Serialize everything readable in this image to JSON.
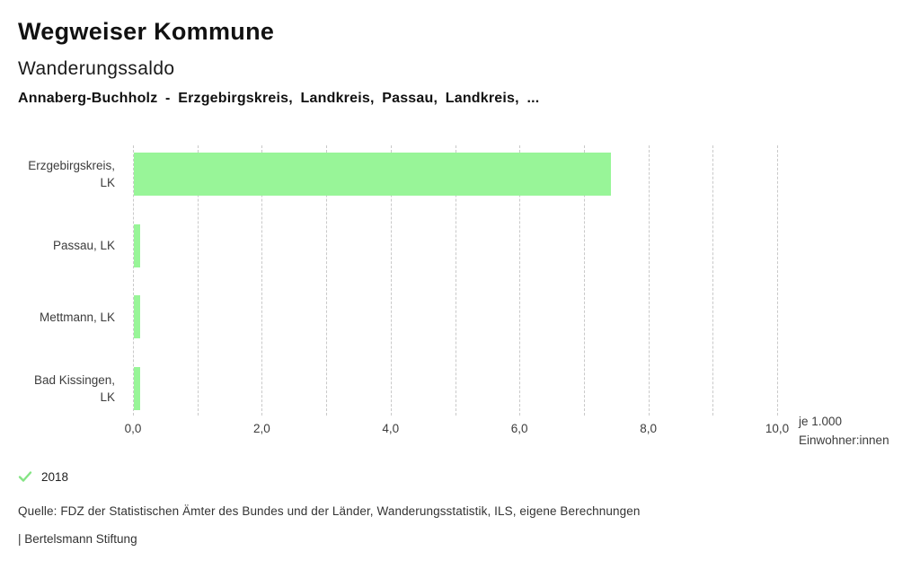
{
  "header": {
    "title": "Wegweiser Kommune",
    "subtitle": "Wanderungssaldo",
    "comparison": "Annaberg-Buchholz - Erzgebirgskreis, Landkreis, Passau, Landkreis, ..."
  },
  "chart_data": {
    "type": "bar",
    "orientation": "horizontal",
    "title": "Wanderungssaldo",
    "categories": [
      "Erzgebirgskreis, LK",
      "Passau, LK",
      "Mettmann, LK",
      "Bad Kissingen, LK"
    ],
    "values": [
      7.4,
      0.1,
      0.1,
      0.1
    ],
    "series_name": "2018",
    "xlim": [
      0,
      10
    ],
    "x_minor_tick_step": 1,
    "x_major_ticks": [
      0,
      2,
      4,
      6,
      8,
      10
    ],
    "x_tick_labels": [
      "0,0",
      "2,0",
      "4,0",
      "6,0",
      "8,0",
      "10,0"
    ],
    "xlabel": "je 1.000 Einwohner:innen",
    "grid": "vertical-dashed",
    "legend_position": "bottom-left",
    "bar_color": "#98f598"
  },
  "axis_unit": {
    "line1": "je 1.000",
    "line2": "Einwohner:innen"
  },
  "legend": {
    "year": "2018",
    "check_icon": "check-icon",
    "check_color": "#85e485"
  },
  "footer": {
    "source": "Quelle: FDZ der Statistischen Ämter des Bundes und der Länder, Wanderungsstatistik, ILS, eigene Berechnungen",
    "attribution": "| Bertelsmann Stiftung"
  }
}
